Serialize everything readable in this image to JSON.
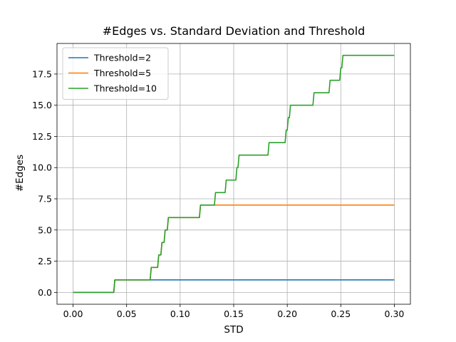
{
  "chart_data": {
    "type": "line",
    "title": "#Edges vs. Standard Deviation and Threshold",
    "xlabel": "STD",
    "ylabel": "#Edges",
    "xlim": [
      -0.015,
      0.315
    ],
    "ylim": [
      -0.95,
      19.95
    ],
    "xticks": [
      0.0,
      0.05,
      0.1,
      0.15,
      0.2,
      0.25,
      0.3
    ],
    "xtick_labels": [
      "0.00",
      "0.05",
      "0.10",
      "0.15",
      "0.20",
      "0.25",
      "0.30"
    ],
    "yticks": [
      0.0,
      2.5,
      5.0,
      7.5,
      10.0,
      12.5,
      15.0,
      17.5
    ],
    "ytick_labels": [
      "0.0",
      "2.5",
      "5.0",
      "7.5",
      "10.0",
      "12.5",
      "15.0",
      "17.5"
    ],
    "grid": true,
    "legend_position": "top-left",
    "series": [
      {
        "name": "Threshold=2",
        "color": "#1f77b4",
        "x": [
          0.0,
          0.038,
          0.039,
          0.3
        ],
        "y": [
          0,
          0,
          1,
          1
        ]
      },
      {
        "name": "Threshold=5",
        "color": "#ff7f0e",
        "x": [
          0.0,
          0.038,
          0.039,
          0.072,
          0.073,
          0.079,
          0.08,
          0.082,
          0.083,
          0.085,
          0.086,
          0.088,
          0.089,
          0.118,
          0.119,
          0.3
        ],
        "y": [
          0,
          0,
          1,
          1,
          2,
          2,
          3,
          3,
          4,
          4,
          5,
          5,
          6,
          6,
          7,
          7
        ]
      },
      {
        "name": "Threshold=10",
        "color": "#2ca02c",
        "x": [
          0.0,
          0.038,
          0.039,
          0.072,
          0.073,
          0.079,
          0.08,
          0.082,
          0.083,
          0.085,
          0.086,
          0.088,
          0.089,
          0.118,
          0.119,
          0.132,
          0.133,
          0.142,
          0.143,
          0.152,
          0.153,
          0.154,
          0.155,
          0.182,
          0.183,
          0.198,
          0.199,
          0.2,
          0.201,
          0.202,
          0.203,
          0.224,
          0.225,
          0.239,
          0.24,
          0.249,
          0.25,
          0.251,
          0.252,
          0.3
        ],
        "y": [
          0,
          0,
          1,
          1,
          2,
          2,
          3,
          3,
          4,
          4,
          5,
          5,
          6,
          6,
          7,
          7,
          8,
          8,
          9,
          9,
          10,
          10,
          11,
          11,
          12,
          12,
          13,
          13,
          14,
          14,
          15,
          15,
          16,
          16,
          17,
          17,
          18,
          18,
          19,
          19
        ]
      }
    ]
  }
}
